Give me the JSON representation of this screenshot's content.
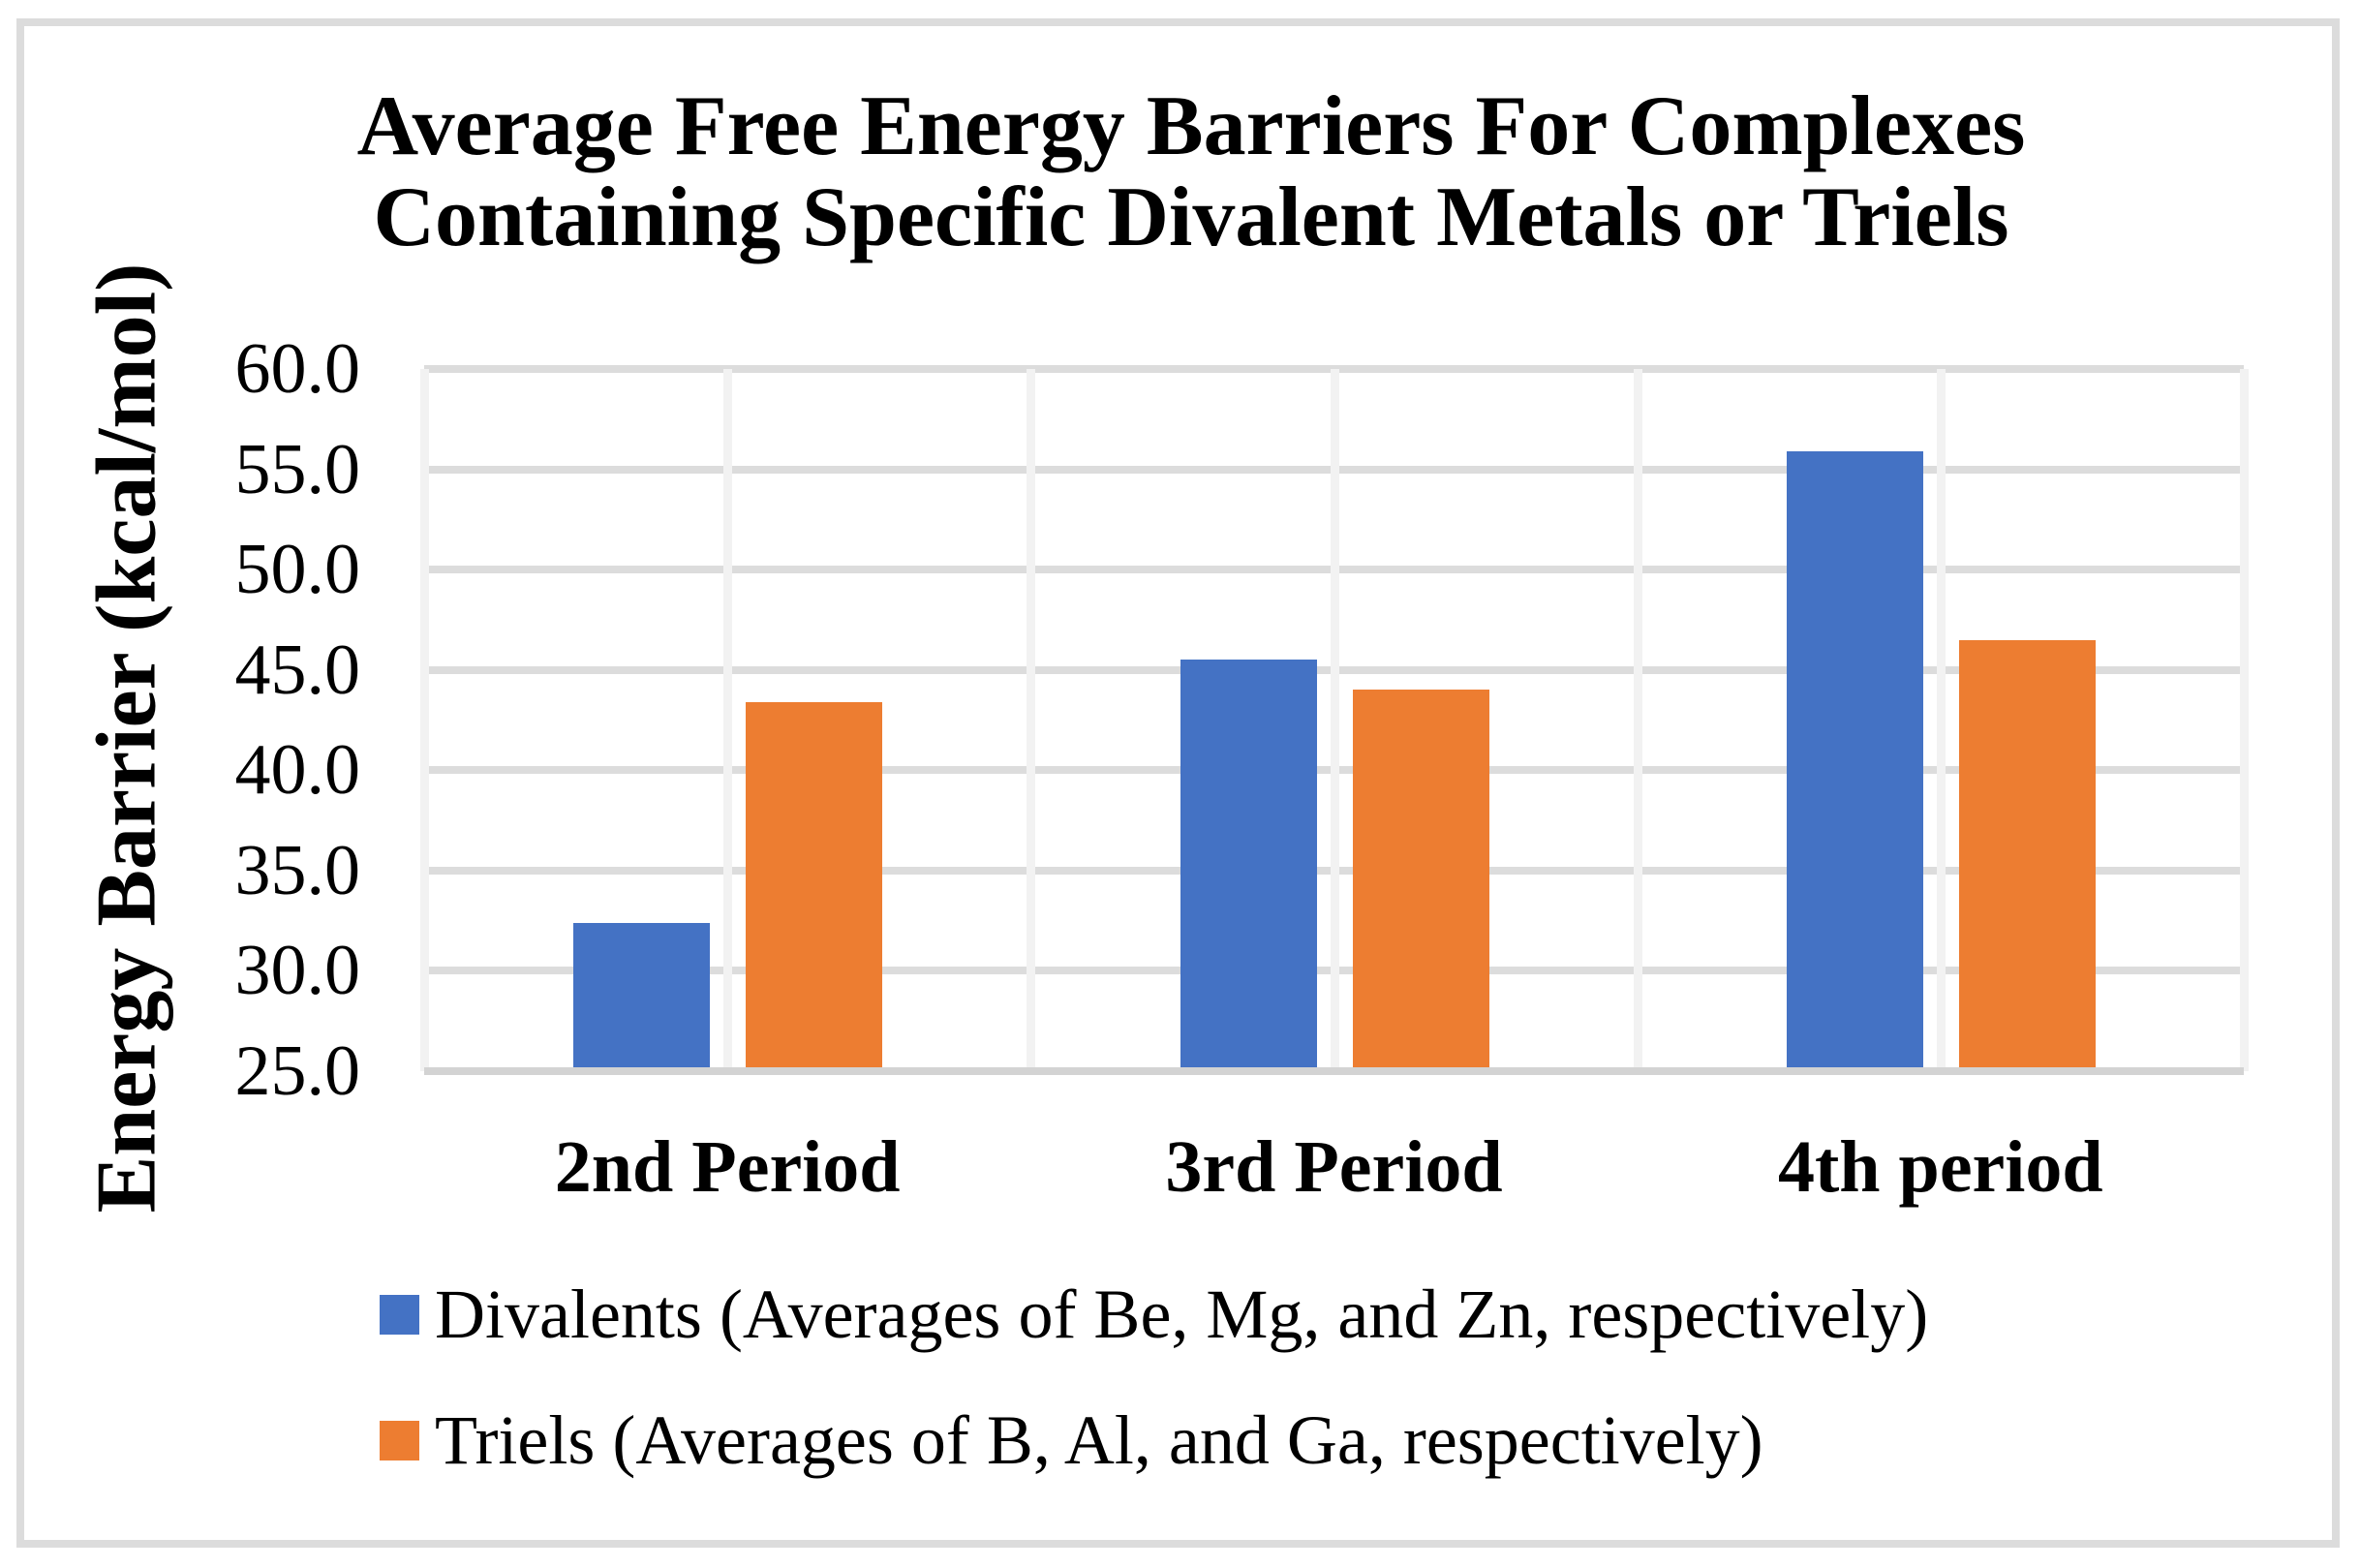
{
  "title": {
    "line1": "Average Free Energy Barriers For Complexes",
    "line2": "Containing Specific Divalent Metals or Triels"
  },
  "chart_data": {
    "type": "bar",
    "title": "Average Free Energy Barriers For Complexes Containing Specific Divalent Metals or Triels",
    "xlabel": "",
    "ylabel": "Energy Barrier (kcal/mol)",
    "categories": [
      "2nd Period",
      "3rd Period",
      "4th period"
    ],
    "series": [
      {
        "name": "Divalents (Averages of Be, Mg, and Zn, respectively)",
        "color": "#4472C4",
        "values": [
          32.4,
          45.5,
          55.9
        ]
      },
      {
        "name": "Triels (Averages of B, Al, and Ga, respectively)",
        "color": "#ED7D31",
        "values": [
          43.4,
          44.0,
          46.5
        ]
      }
    ],
    "ylim": [
      25.0,
      60.0
    ],
    "ytick_step": 5.0,
    "ytick_labels": [
      "60.0",
      "55.0",
      "50.0",
      "45.0",
      "40.0",
      "35.0",
      "30.0",
      "25.0"
    ],
    "grid": true,
    "legend_position": "bottom-left",
    "colors": {
      "horizontal_gridline": "#dcdcdc",
      "vertical_gridline": "#f2f2f2",
      "axis_line": "#d3d3d3",
      "frame_border": "#dcdcdc",
      "background": "#ffffff",
      "text": "#000000"
    }
  }
}
